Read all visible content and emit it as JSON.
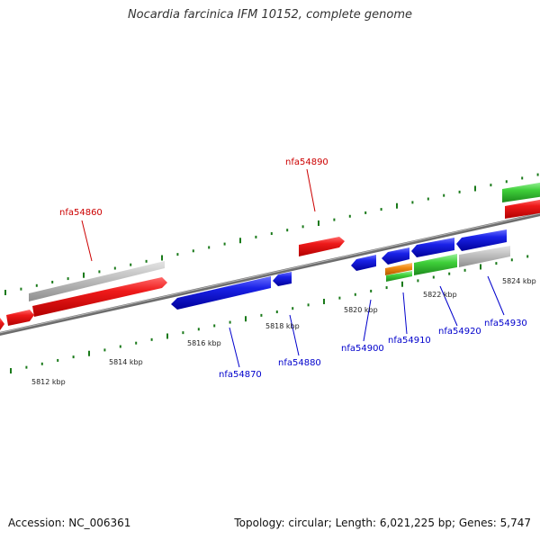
{
  "title": "Nocardia farcinica IFM 10152, complete genome",
  "footer": {
    "accession": "Accession: NC_006361",
    "summary": "Topology: circular; Length: 6,021,225 bp; Genes: 5,747"
  },
  "colors": {
    "red": "#e8121c",
    "blue": "#0a12de",
    "gray": "#bdbdbd",
    "green": "#3fcc3a",
    "orange": "#f08a12",
    "backbone": "#8a8a8a",
    "tick": "#1a7a1a",
    "label_red": "#cc0000",
    "label_blue": "#0000cc"
  },
  "scale_labels": [
    "5812 kbp",
    "5814 kbp",
    "5816 kbp",
    "5818 kbp",
    "5820 kbp",
    "5822 kbp",
    "5824 kbp"
  ],
  "gene_labels": {
    "nfa54860": "nfa54860",
    "nfa54890": "nfa54890",
    "nfa54870": "nfa54870",
    "nfa54880": "nfa54880",
    "nfa54900": "nfa54900",
    "nfa54910": "nfa54910",
    "nfa54920": "nfa54920",
    "nfa54930": "nfa54930"
  }
}
